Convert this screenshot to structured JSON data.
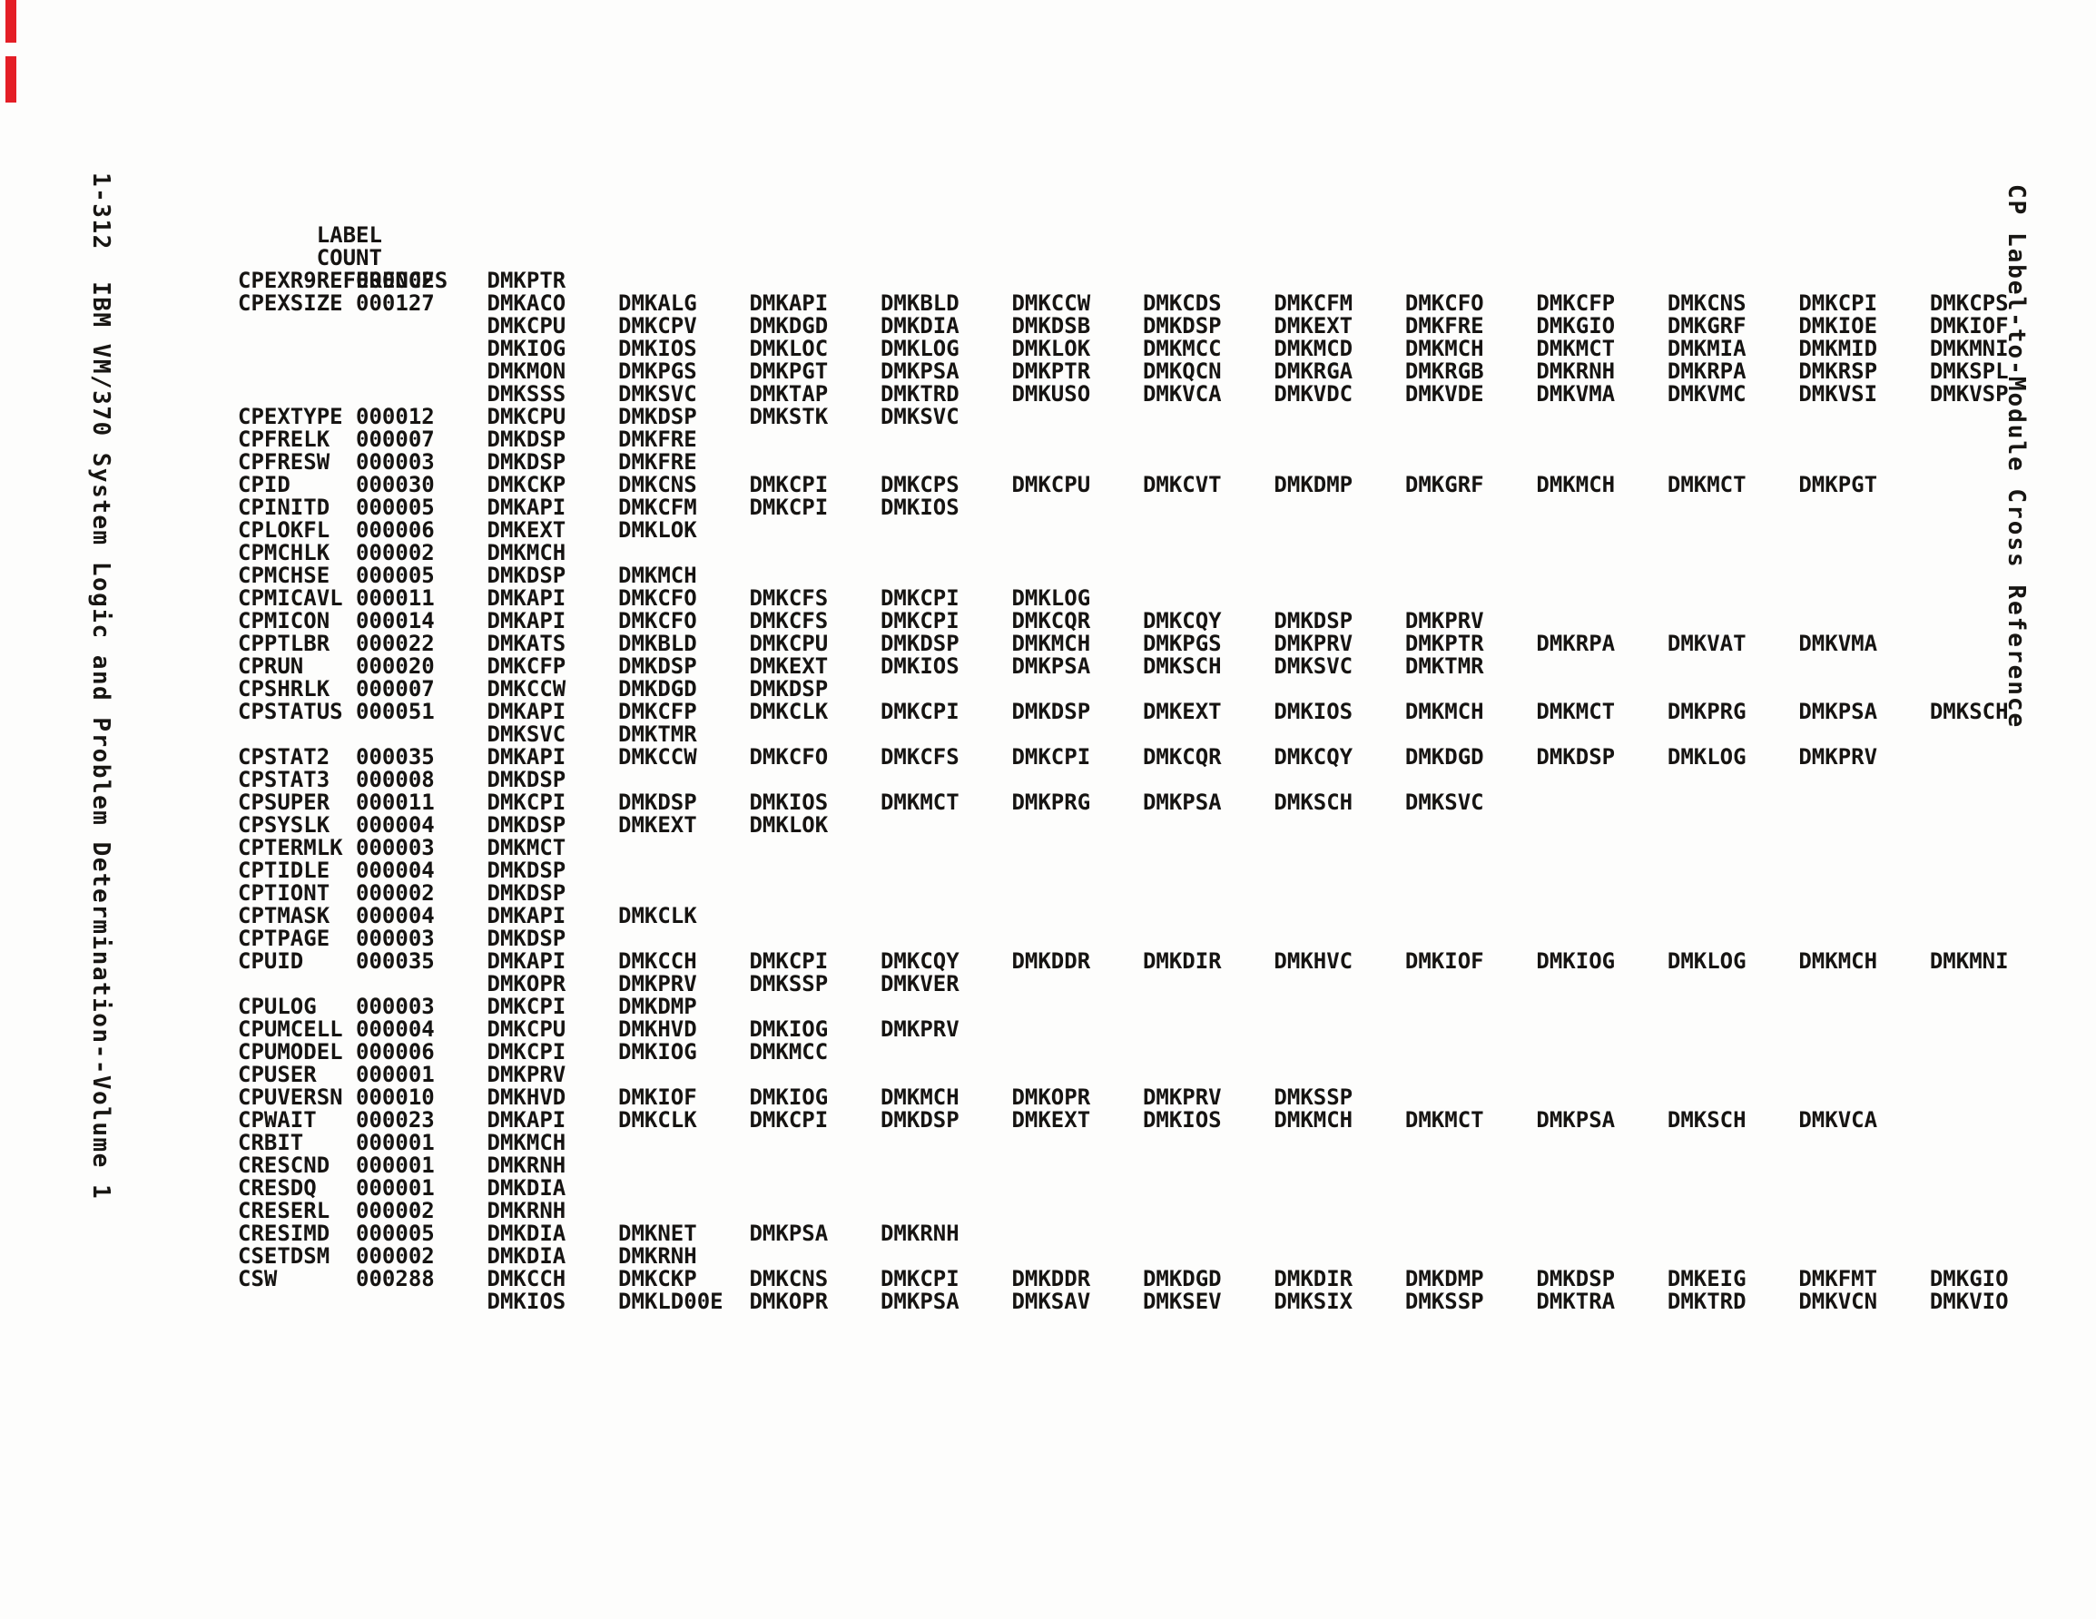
{
  "page": {
    "left_margin_text": "1-312  IBM VM/370 System Logic and Problem Determination--Volume 1",
    "right_margin_text": "CP Label-to-Module Cross Reference",
    "edge_mark_color": "#e41e26"
  },
  "table": {
    "headers": {
      "label": "LABEL",
      "count": "COUNT",
      "references": "REFERENCES"
    },
    "rows": [
      {
        "label": "CPEXR9",
        "count": "000002",
        "ref_lines": [
          [
            "DMKPTR"
          ]
        ]
      },
      {
        "label": "CPEXSIZE",
        "count": "000127",
        "ref_lines": [
          [
            "DMKACO",
            "DMKALG",
            "DMKAPI",
            "DMKBLD",
            "DMKCCW",
            "DMKCDS",
            "DMKCFM",
            "DMKCFO",
            "DMKCFP",
            "DMKCNS",
            "DMKCPI",
            "DMKCPS"
          ],
          [
            "DMKCPU",
            "DMKCPV",
            "DMKDGD",
            "DMKDIA",
            "DMKDSB",
            "DMKDSP",
            "DMKEXT",
            "DMKFRE",
            "DMKGIO",
            "DMKGRF",
            "DMKIOE",
            "DMKIOF"
          ],
          [
            "DMKIOG",
            "DMKIOS",
            "DMKLOC",
            "DMKLOG",
            "DMKLOK",
            "DMKMCC",
            "DMKMCD",
            "DMKMCH",
            "DMKMCT",
            "DMKMIA",
            "DMKMID",
            "DMKMNI"
          ],
          [
            "DMKMON",
            "DMKPGS",
            "DMKPGT",
            "DMKPSA",
            "DMKPTR",
            "DMKQCN",
            "DMKRGA",
            "DMKRGB",
            "DMKRNH",
            "DMKRPA",
            "DMKRSP",
            "DMKSPL"
          ],
          [
            "DMKSSS",
            "DMKSVC",
            "DMKTAP",
            "DMKTRD",
            "DMKUSO",
            "DMKVCA",
            "DMKVDC",
            "DMKVDE",
            "DMKVMA",
            "DMKVMC",
            "DMKVSI",
            "DMKVSP"
          ]
        ]
      },
      {
        "label": "CPEXTYPE",
        "count": "000012",
        "ref_lines": [
          [
            "DMKCPU",
            "DMKDSP",
            "DMKSTK",
            "DMKSVC"
          ]
        ]
      },
      {
        "label": "CPFRELK",
        "count": "000007",
        "ref_lines": [
          [
            "DMKDSP",
            "DMKFRE"
          ]
        ]
      },
      {
        "label": "CPFRESW",
        "count": "000003",
        "ref_lines": [
          [
            "DMKDSP",
            "DMKFRE"
          ]
        ]
      },
      {
        "label": "CPID",
        "count": "000030",
        "ref_lines": [
          [
            "DMKCKP",
            "DMKCNS",
            "DMKCPI",
            "DMKCPS",
            "DMKCPU",
            "DMKCVT",
            "DMKDMP",
            "DMKGRF",
            "DMKMCH",
            "DMKMCT",
            "DMKPGT"
          ]
        ]
      },
      {
        "label": "CPINITD",
        "count": "000005",
        "ref_lines": [
          [
            "DMKAPI",
            "DMKCFM",
            "DMKCPI",
            "DMKIOS"
          ]
        ]
      },
      {
        "label": "CPLOKFL",
        "count": "000006",
        "ref_lines": [
          [
            "DMKEXT",
            "DMKLOK"
          ]
        ]
      },
      {
        "label": "CPMCHLK",
        "count": "000002",
        "ref_lines": [
          [
            "DMKMCH"
          ]
        ]
      },
      {
        "label": "CPMCHSE",
        "count": "000005",
        "ref_lines": [
          [
            "DMKDSP",
            "DMKMCH"
          ]
        ]
      },
      {
        "label": "CPMICAVL",
        "count": "000011",
        "ref_lines": [
          [
            "DMKAPI",
            "DMKCFO",
            "DMKCFS",
            "DMKCPI",
            "DMKLOG"
          ]
        ]
      },
      {
        "label": "CPMICON",
        "count": "000014",
        "ref_lines": [
          [
            "DMKAPI",
            "DMKCFO",
            "DMKCFS",
            "DMKCPI",
            "DMKCQR",
            "DMKCQY",
            "DMKDSP",
            "DMKPRV"
          ]
        ]
      },
      {
        "label": "CPPTLBR",
        "count": "000022",
        "ref_lines": [
          [
            "DMKATS",
            "DMKBLD",
            "DMKCPU",
            "DMKDSP",
            "DMKMCH",
            "DMKPGS",
            "DMKPRV",
            "DMKPTR",
            "DMKRPA",
            "DMKVAT",
            "DMKVMA"
          ]
        ]
      },
      {
        "label": "CPRUN",
        "count": "000020",
        "ref_lines": [
          [
            "DMKCFP",
            "DMKDSP",
            "DMKEXT",
            "DMKIOS",
            "DMKPSA",
            "DMKSCH",
            "DMKSVC",
            "DMKTMR"
          ]
        ]
      },
      {
        "label": "CPSHRLK",
        "count": "000007",
        "ref_lines": [
          [
            "DMKCCW",
            "DMKDGD",
            "DMKDSP"
          ]
        ]
      },
      {
        "label": "CPSTATUS",
        "count": "000051",
        "ref_lines": [
          [
            "DMKAPI",
            "DMKCFP",
            "DMKCLK",
            "DMKCPI",
            "DMKDSP",
            "DMKEXT",
            "DMKIOS",
            "DMKMCH",
            "DMKMCT",
            "DMKPRG",
            "DMKPSA",
            "DMKSCH"
          ],
          [
            "DMKSVC",
            "DMKTMR"
          ]
        ]
      },
      {
        "label": "CPSTAT2",
        "count": "000035",
        "ref_lines": [
          [
            "DMKAPI",
            "DMKCCW",
            "DMKCFO",
            "DMKCFS",
            "DMKCPI",
            "DMKCQR",
            "DMKCQY",
            "DMKDGD",
            "DMKDSP",
            "DMKLOG",
            "DMKPRV"
          ]
        ]
      },
      {
        "label": "CPSTAT3",
        "count": "000008",
        "ref_lines": [
          [
            "DMKDSP"
          ]
        ]
      },
      {
        "label": "CPSUPER",
        "count": "000011",
        "ref_lines": [
          [
            "DMKCPI",
            "DMKDSP",
            "DMKIOS",
            "DMKMCT",
            "DMKPRG",
            "DMKPSA",
            "DMKSCH",
            "DMKSVC"
          ]
        ]
      },
      {
        "label": "CPSYSLK",
        "count": "000004",
        "ref_lines": [
          [
            "DMKDSP",
            "DMKEXT",
            "DMKLOK"
          ]
        ]
      },
      {
        "label": "CPTERMLK",
        "count": "000003",
        "ref_lines": [
          [
            "DMKMCT"
          ]
        ]
      },
      {
        "label": "CPTIDLE",
        "count": "000004",
        "ref_lines": [
          [
            "DMKDSP"
          ]
        ]
      },
      {
        "label": "CPTIONT",
        "count": "000002",
        "ref_lines": [
          [
            "DMKDSP"
          ]
        ]
      },
      {
        "label": "CPTMASK",
        "count": "000004",
        "ref_lines": [
          [
            "DMKAPI",
            "DMKCLK"
          ]
        ]
      },
      {
        "label": "CPTPAGE",
        "count": "000003",
        "ref_lines": [
          [
            "DMKDSP"
          ]
        ]
      },
      {
        "label": "CPUID",
        "count": "000035",
        "ref_lines": [
          [
            "DMKAPI",
            "DMKCCH",
            "DMKCPI",
            "DMKCQY",
            "DMKDDR",
            "DMKDIR",
            "DMKHVC",
            "DMKIOF",
            "DMKIOG",
            "DMKLOG",
            "DMKMCH",
            "DMKMNI"
          ],
          [
            "DMKOPR",
            "DMKPRV",
            "DMKSSP",
            "DMKVER"
          ]
        ]
      },
      {
        "label": "CPULOG",
        "count": "000003",
        "ref_lines": [
          [
            "DMKCPI",
            "DMKDMP"
          ]
        ]
      },
      {
        "label": "CPUMCELL",
        "count": "000004",
        "ref_lines": [
          [
            "DMKCPU",
            "DMKHVD",
            "DMKIOG",
            "DMKPRV"
          ]
        ]
      },
      {
        "label": "CPUMODEL",
        "count": "000006",
        "ref_lines": [
          [
            "DMKCPI",
            "DMKIOG",
            "DMKMCC"
          ]
        ]
      },
      {
        "label": "CPUSER",
        "count": "000001",
        "ref_lines": [
          [
            "DMKPRV"
          ]
        ]
      },
      {
        "label": "CPUVERSN",
        "count": "000010",
        "ref_lines": [
          [
            "DMKHVD",
            "DMKIOF",
            "DMKIOG",
            "DMKMCH",
            "DMKOPR",
            "DMKPRV",
            "DMKSSP"
          ]
        ]
      },
      {
        "label": "CPWAIT",
        "count": "000023",
        "ref_lines": [
          [
            "DMKAPI",
            "DMKCLK",
            "DMKCPI",
            "DMKDSP",
            "DMKEXT",
            "DMKIOS",
            "DMKMCH",
            "DMKMCT",
            "DMKPSA",
            "DMKSCH",
            "DMKVCA"
          ]
        ]
      },
      {
        "label": "CRBIT",
        "count": "000001",
        "ref_lines": [
          [
            "DMKMCH"
          ]
        ]
      },
      {
        "label": "CRESCND",
        "count": "000001",
        "ref_lines": [
          [
            "DMKRNH"
          ]
        ]
      },
      {
        "label": "CRESDQ",
        "count": "000001",
        "ref_lines": [
          [
            "DMKDIA"
          ]
        ]
      },
      {
        "label": "CRESERL",
        "count": "000002",
        "ref_lines": [
          [
            "DMKRNH"
          ]
        ]
      },
      {
        "label": "CRESIMD",
        "count": "000005",
        "ref_lines": [
          [
            "DMKDIA",
            "DMKNET",
            "DMKPSA",
            "DMKRNH"
          ]
        ]
      },
      {
        "label": "CSETDSM",
        "count": "000002",
        "ref_lines": [
          [
            "DMKDIA",
            "DMKRNH"
          ]
        ]
      },
      {
        "label": "CSW",
        "count": "000288",
        "ref_lines": [
          [
            "DMKCCH",
            "DMKCKP",
            "DMKCNS",
            "DMKCPI",
            "DMKDDR",
            "DMKDGD",
            "DMKDIR",
            "DMKDMP",
            "DMKDSP",
            "DMKEIG",
            "DMKFMT",
            "DMKGIO"
          ],
          [
            "DMKIOS",
            "DMKLD00E",
            "DMKOPR",
            "DMKPSA",
            "DMKSAV",
            "DMKSEV",
            "DMKSIX",
            "DMKSSP",
            "DMKTRA",
            "DMKTRD",
            "DMKVCN",
            "DMKVIO"
          ]
        ]
      }
    ]
  }
}
